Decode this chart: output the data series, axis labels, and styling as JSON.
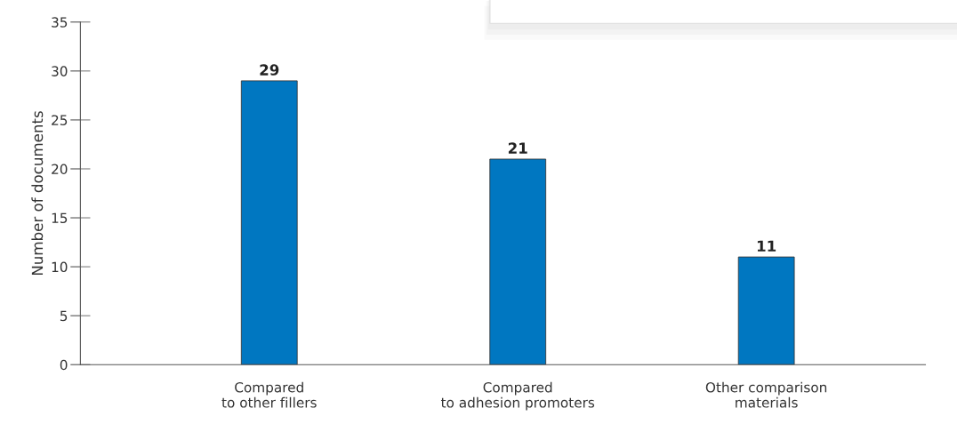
{
  "chart_data": {
    "type": "bar",
    "ylabel": "Number of documents",
    "categories": [
      "Compared\nto other fillers",
      "Compared\nto adhesion promoters",
      "Other comparison\nmaterials"
    ],
    "values": [
      29,
      21,
      11
    ],
    "color": "#0077c1",
    "ylim": [
      0,
      35
    ],
    "yticks": [
      0,
      5,
      10,
      15,
      20,
      25,
      30,
      35
    ],
    "grid": false,
    "data_labels": true
  }
}
